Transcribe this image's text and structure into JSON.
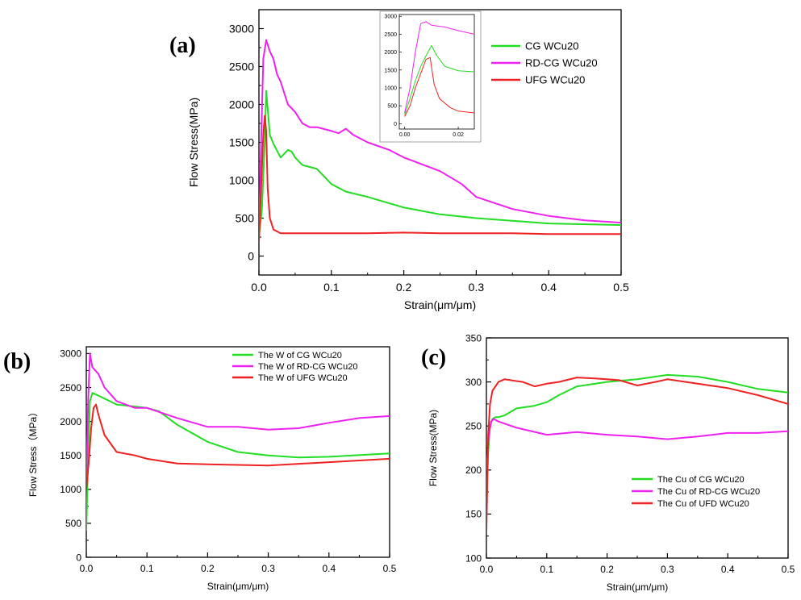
{
  "chart_data": [
    {
      "id": "a",
      "panel_label": "(a)",
      "type": "line",
      "xlabel": "Strain(μm/μm)",
      "ylabel": "Flow Stress(MPa)",
      "xlim": [
        0,
        0.5
      ],
      "ylim": [
        -250,
        3250
      ],
      "xticks": [
        0,
        0.1,
        0.2,
        0.3,
        0.4,
        0.5
      ],
      "xtick_labels": [
        "0.0",
        "0.1",
        "0.2",
        "0.3",
        "0.4",
        "0.5"
      ],
      "yticks": [
        0,
        500,
        1000,
        1500,
        2000,
        2500,
        3000
      ],
      "ytick_labels": [
        "0",
        "500",
        "1000",
        "1500",
        "2000",
        "2500",
        "3000"
      ],
      "legend_position": "top-right",
      "series": [
        {
          "name": "CG WCu20",
          "color": "#22dd22",
          "x": [
            0,
            0.004,
            0.008,
            0.01,
            0.012,
            0.015,
            0.02,
            0.03,
            0.04,
            0.045,
            0.05,
            0.06,
            0.08,
            0.1,
            0.12,
            0.15,
            0.2,
            0.25,
            0.3,
            0.4,
            0.5
          ],
          "y": [
            260,
            600,
            1500,
            2180,
            1950,
            1600,
            1480,
            1300,
            1400,
            1380,
            1300,
            1200,
            1150,
            950,
            850,
            780,
            640,
            550,
            500,
            430,
            410
          ]
        },
        {
          "name": "RD-CG WCu20",
          "color": "#ee22ee",
          "x": [
            0,
            0.003,
            0.006,
            0.01,
            0.015,
            0.02,
            0.025,
            0.03,
            0.04,
            0.05,
            0.06,
            0.07,
            0.08,
            0.1,
            0.11,
            0.12,
            0.13,
            0.15,
            0.18,
            0.2,
            0.25,
            0.28,
            0.3,
            0.35,
            0.4,
            0.45,
            0.5
          ],
          "y": [
            300,
            1500,
            2600,
            2850,
            2700,
            2600,
            2400,
            2300,
            2000,
            1900,
            1750,
            1700,
            1700,
            1650,
            1620,
            1680,
            1600,
            1500,
            1400,
            1300,
            1120,
            950,
            780,
            620,
            530,
            470,
            440
          ]
        },
        {
          "name": "UFG WCu20",
          "color": "#ee2222",
          "x": [
            0,
            0.003,
            0.006,
            0.008,
            0.01,
            0.012,
            0.015,
            0.02,
            0.03,
            0.05,
            0.1,
            0.15,
            0.2,
            0.25,
            0.3,
            0.35,
            0.4,
            0.5
          ],
          "y": [
            180,
            900,
            1600,
            1850,
            1650,
            900,
            500,
            350,
            300,
            300,
            300,
            300,
            310,
            300,
            300,
            300,
            290,
            290
          ]
        }
      ],
      "inset": {
        "xlim": [
          -0.002,
          0.026
        ],
        "ylim": [
          -150,
          3050
        ],
        "xticks": [
          0,
          0.02
        ],
        "xtick_labels": [
          "0.00",
          "0.02"
        ],
        "yticks": [
          0,
          500,
          1000,
          1500,
          2000,
          2500,
          3000
        ],
        "ytick_labels": [
          "0",
          "500",
          "1000",
          "1500",
          "2000",
          "2500",
          "3000"
        ],
        "series": [
          {
            "color": "#22dd22",
            "x": [
              0,
              0.002,
              0.004,
              0.006,
              0.008,
              0.01,
              0.012,
              0.015,
              0.02,
              0.026
            ],
            "y": [
              250,
              700,
              1200,
              1600,
              1900,
              2180,
              1900,
              1600,
              1480,
              1450
            ]
          },
          {
            "color": "#ee22ee",
            "x": [
              0,
              0.002,
              0.004,
              0.006,
              0.008,
              0.01,
              0.015,
              0.02,
              0.026
            ],
            "y": [
              300,
              1000,
              2000,
              2800,
              2850,
              2750,
              2700,
              2600,
              2500
            ]
          },
          {
            "color": "#ee2222",
            "x": [
              0,
              0.002,
              0.004,
              0.006,
              0.008,
              0.0095,
              0.011,
              0.013,
              0.017,
              0.02,
              0.026
            ],
            "y": [
              200,
              500,
              1000,
              1400,
              1800,
              1850,
              1100,
              700,
              450,
              350,
              300
            ]
          }
        ]
      }
    },
    {
      "id": "b",
      "panel_label": "(b)",
      "type": "line",
      "xlabel": "Strain(μm/μm)",
      "ylabel": "Flow Stress（MPa）",
      "xlim": [
        0,
        0.5
      ],
      "ylim": [
        0,
        3100
      ],
      "xticks": [
        0,
        0.1,
        0.2,
        0.3,
        0.4,
        0.5
      ],
      "xtick_labels": [
        "0.0",
        "0.1",
        "0.2",
        "0.3",
        "0.4",
        "0.5"
      ],
      "yticks": [
        0,
        500,
        1000,
        1500,
        2000,
        2500,
        3000
      ],
      "ytick_labels": [
        "0",
        "500",
        "1000",
        "1500",
        "2000",
        "2500",
        "3000"
      ],
      "legend_position": "top-right",
      "series": [
        {
          "name": "The W of CG WCu20",
          "color": "#22dd22",
          "x": [
            0,
            0.003,
            0.006,
            0.01,
            0.02,
            0.05,
            0.1,
            0.12,
            0.15,
            0.2,
            0.25,
            0.3,
            0.35,
            0.4,
            0.5
          ],
          "y": [
            400,
            1500,
            2300,
            2420,
            2380,
            2250,
            2200,
            2150,
            1950,
            1700,
            1550,
            1500,
            1470,
            1480,
            1530
          ]
        },
        {
          "name": "The W of RD-CG WCu20",
          "color": "#ee22ee",
          "x": [
            0,
            0.003,
            0.006,
            0.01,
            0.02,
            0.03,
            0.05,
            0.08,
            0.1,
            0.15,
            0.2,
            0.25,
            0.3,
            0.35,
            0.4,
            0.45,
            0.5
          ],
          "y": [
            1100,
            2300,
            3000,
            2800,
            2700,
            2500,
            2300,
            2200,
            2200,
            2050,
            1920,
            1920,
            1880,
            1900,
            1980,
            2050,
            2080
          ]
        },
        {
          "name": "The W of UFG WCu20",
          "color": "#ee2222",
          "x": [
            0,
            0.004,
            0.008,
            0.012,
            0.016,
            0.02,
            0.03,
            0.05,
            0.08,
            0.1,
            0.15,
            0.2,
            0.3,
            0.4,
            0.5
          ],
          "y": [
            1000,
            1400,
            1900,
            2200,
            2250,
            2100,
            1800,
            1550,
            1500,
            1450,
            1380,
            1370,
            1350,
            1400,
            1450
          ]
        }
      ]
    },
    {
      "id": "c",
      "panel_label": "(c)",
      "type": "line",
      "xlabel": "Strain(μm/μm)",
      "ylabel": "Flow Stress(MPa)",
      "xlim": [
        0,
        0.5
      ],
      "ylim": [
        100,
        350
      ],
      "xticks": [
        0,
        0.1,
        0.2,
        0.3,
        0.4,
        0.5
      ],
      "xtick_labels": [
        "0.0",
        "0.1",
        "0.2",
        "0.3",
        "0.4",
        "0.5"
      ],
      "yticks": [
        100,
        150,
        200,
        250,
        300,
        350
      ],
      "ytick_labels": [
        "100",
        "150",
        "200",
        "250",
        "300",
        "350"
      ],
      "legend_position": "bottom-right",
      "series": [
        {
          "name": "The Cu of CG WCu20",
          "color": "#22dd22",
          "x": [
            0,
            0.003,
            0.006,
            0.01,
            0.015,
            0.02,
            0.03,
            0.05,
            0.08,
            0.1,
            0.12,
            0.15,
            0.2,
            0.25,
            0.3,
            0.35,
            0.4,
            0.45,
            0.5
          ],
          "y": [
            160,
            220,
            250,
            258,
            260,
            260,
            262,
            270,
            273,
            277,
            285,
            295,
            300,
            303,
            308,
            306,
            300,
            292,
            288
          ]
        },
        {
          "name": "The Cu of RD-CG WCu20",
          "color": "#ee22ee",
          "x": [
            0,
            0.004,
            0.008,
            0.012,
            0.02,
            0.05,
            0.1,
            0.15,
            0.2,
            0.25,
            0.3,
            0.35,
            0.4,
            0.45,
            0.5
          ],
          "y": [
            200,
            240,
            255,
            258,
            255,
            248,
            240,
            243,
            240,
            238,
            235,
            238,
            242,
            242,
            244
          ]
        },
        {
          "name": "The Cu of UFD WCu20",
          "color": "#ee2222",
          "x": [
            0,
            0.003,
            0.006,
            0.01,
            0.02,
            0.03,
            0.04,
            0.06,
            0.08,
            0.1,
            0.12,
            0.15,
            0.18,
            0.22,
            0.25,
            0.28,
            0.3,
            0.35,
            0.4,
            0.45,
            0.5
          ],
          "y": [
            130,
            240,
            275,
            290,
            300,
            303,
            302,
            300,
            295,
            298,
            300,
            305,
            304,
            302,
            296,
            300,
            303,
            298,
            293,
            285,
            275
          ]
        }
      ]
    }
  ]
}
